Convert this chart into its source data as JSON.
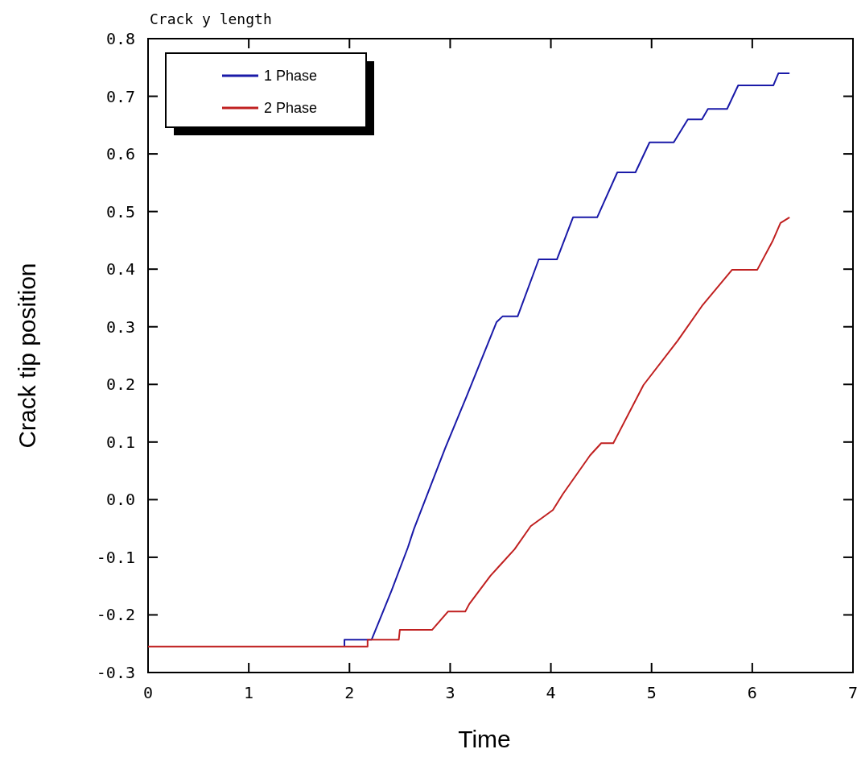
{
  "chart_data": {
    "type": "line",
    "title": "Crack y length",
    "xlabel": "Time",
    "ylabel": "Crack tip position",
    "xlim": [
      0,
      7
    ],
    "xticks": [
      0,
      1,
      2,
      3,
      4,
      5,
      6,
      7
    ],
    "ylim": [
      -0.3,
      0.8
    ],
    "yticks": [
      -0.3,
      -0.2,
      -0.1,
      {
        "value": 0,
        "label": "0.0"
      },
      0.1,
      0.2,
      0.3,
      0.4,
      0.5,
      0.6,
      0.7,
      0.8
    ],
    "grid": false,
    "legend": "top left",
    "marker": "none",
    "line_style": "solid",
    "series": [
      {
        "name": "1 Phase",
        "color": "#1a1aa8",
        "x": [
          1.95,
          1.95,
          2.22,
          2.42,
          2.58,
          2.64,
          2.95,
          3.16,
          3.46,
          3.52,
          3.67,
          3.88,
          4.06,
          4.22,
          4.46,
          4.66,
          4.84,
          4.98,
          5.22,
          5.36,
          5.5,
          5.56,
          5.75,
          5.86,
          6.21,
          6.26,
          6.37
        ],
        "values": [
          -0.255,
          -0.243,
          -0.243,
          -0.157,
          -0.083,
          -0.051,
          0.089,
          0.178,
          0.308,
          0.318,
          0.318,
          0.417,
          0.417,
          0.49,
          0.49,
          0.568,
          0.568,
          0.62,
          0.62,
          0.66,
          0.66,
          0.678,
          0.678,
          0.719,
          0.719,
          0.74,
          0.74
        ]
      },
      {
        "name": "2 Phase",
        "color": "#c02020",
        "x": [
          0,
          2.18,
          2.18,
          2.49,
          2.5,
          2.82,
          2.98,
          3.15,
          3.19,
          3.4,
          3.51,
          3.64,
          3.8,
          4.02,
          4.12,
          4.39,
          4.5,
          4.62,
          4.92,
          5.26,
          5.5,
          5.8,
          6.05,
          6.2,
          6.28,
          6.37
        ],
        "values": [
          -0.255,
          -0.255,
          -0.243,
          -0.243,
          -0.226,
          -0.226,
          -0.194,
          -0.194,
          -0.181,
          -0.132,
          -0.111,
          -0.086,
          -0.046,
          -0.018,
          0.01,
          0.077,
          0.098,
          0.098,
          0.199,
          0.276,
          0.336,
          0.399,
          0.399,
          0.448,
          0.48,
          0.49
        ]
      }
    ]
  }
}
